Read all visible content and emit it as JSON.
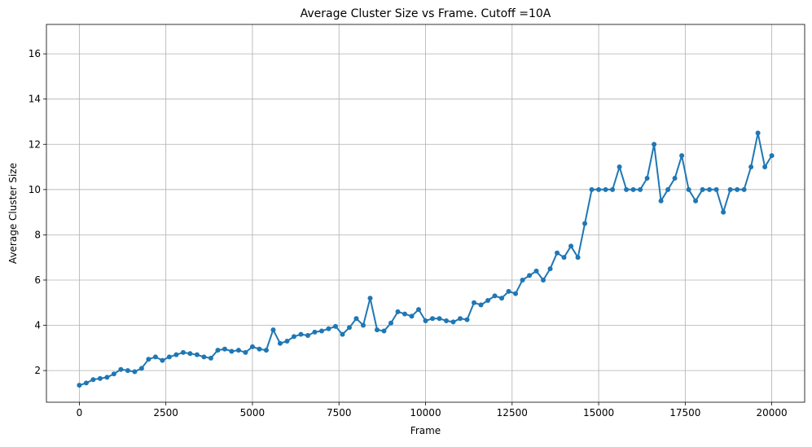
{
  "chart_data": {
    "type": "line",
    "title": "Average Cluster Size vs Frame. Cutoff =10A",
    "xlabel": "Frame",
    "ylabel": "Average Cluster Size",
    "xlim": [
      -950,
      20950
    ],
    "ylim": [
      0.6,
      17.3
    ],
    "xticks": [
      0,
      2500,
      5000,
      7500,
      10000,
      12500,
      15000,
      17500,
      20000
    ],
    "xtick_labels": [
      "0",
      "2500",
      "5000",
      "7500",
      "10000",
      "12500",
      "15000",
      "17500",
      "20000"
    ],
    "yticks": [
      2,
      4,
      6,
      8,
      10,
      12,
      14,
      16
    ],
    "ytick_labels": [
      "2",
      "4",
      "6",
      "8",
      "10",
      "12",
      "14",
      "16"
    ],
    "grid": true,
    "marker": "circle",
    "series": [
      {
        "color": "#1f77b4",
        "x": [
          0,
          200,
          400,
          600,
          800,
          1000,
          1200,
          1400,
          1600,
          1800,
          2000,
          2200,
          2400,
          2600,
          2800,
          3000,
          3200,
          3400,
          3600,
          3800,
          4000,
          4200,
          4400,
          4600,
          4800,
          5000,
          5200,
          5400,
          5600,
          5800,
          6000,
          6200,
          6400,
          6600,
          6800,
          7000,
          7200,
          7400,
          7600,
          7800,
          8000,
          8200,
          8400,
          8600,
          8800,
          9000,
          9200,
          9400,
          9600,
          9800,
          10000,
          10200,
          10400,
          10600,
          10800,
          11000,
          11200,
          11400,
          11600,
          11800,
          12000,
          12200,
          12400,
          12600,
          12800,
          13000,
          13200,
          13400,
          13600,
          13800,
          14000,
          14200,
          14400,
          14600,
          14800,
          15000,
          15200,
          15400,
          15600,
          15800,
          16000,
          16200,
          16400,
          16600,
          16800,
          17000,
          17200,
          17400,
          17600,
          17800,
          18000,
          18200,
          18400,
          18600,
          18800,
          19000,
          19200,
          19400,
          19600,
          19800,
          20000
        ],
        "y": [
          1.35,
          1.45,
          1.6,
          1.65,
          1.7,
          1.85,
          2.05,
          2.0,
          1.95,
          2.1,
          2.5,
          2.6,
          2.45,
          2.6,
          2.7,
          2.8,
          2.75,
          2.7,
          2.6,
          2.55,
          2.9,
          2.95,
          2.85,
          2.9,
          2.8,
          3.05,
          2.95,
          2.9,
          3.8,
          3.2,
          3.3,
          3.5,
          3.6,
          3.55,
          3.7,
          3.75,
          3.85,
          3.95,
          3.6,
          3.9,
          4.3,
          4.0,
          5.2,
          3.8,
          3.75,
          4.1,
          4.6,
          4.5,
          4.4,
          4.7,
          4.2,
          4.3,
          4.3,
          4.2,
          4.15,
          4.3,
          4.25,
          5.0,
          4.9,
          5.1,
          5.3,
          5.2,
          5.5,
          5.4,
          6.0,
          6.2,
          6.4,
          6.0,
          6.5,
          7.2,
          7.0,
          7.5,
          7.0,
          8.5,
          10.0,
          10.0,
          10.0,
          10.0,
          11.0,
          10.0,
          10.0,
          10.0,
          10.5,
          12.0,
          9.5,
          10.0,
          10.5,
          11.5,
          10.0,
          9.5,
          10.0,
          10.0,
          10.0,
          9.0,
          10.0,
          10.0,
          10.0,
          11.0,
          12.5,
          11.0,
          11.5
        ]
      }
    ]
  }
}
